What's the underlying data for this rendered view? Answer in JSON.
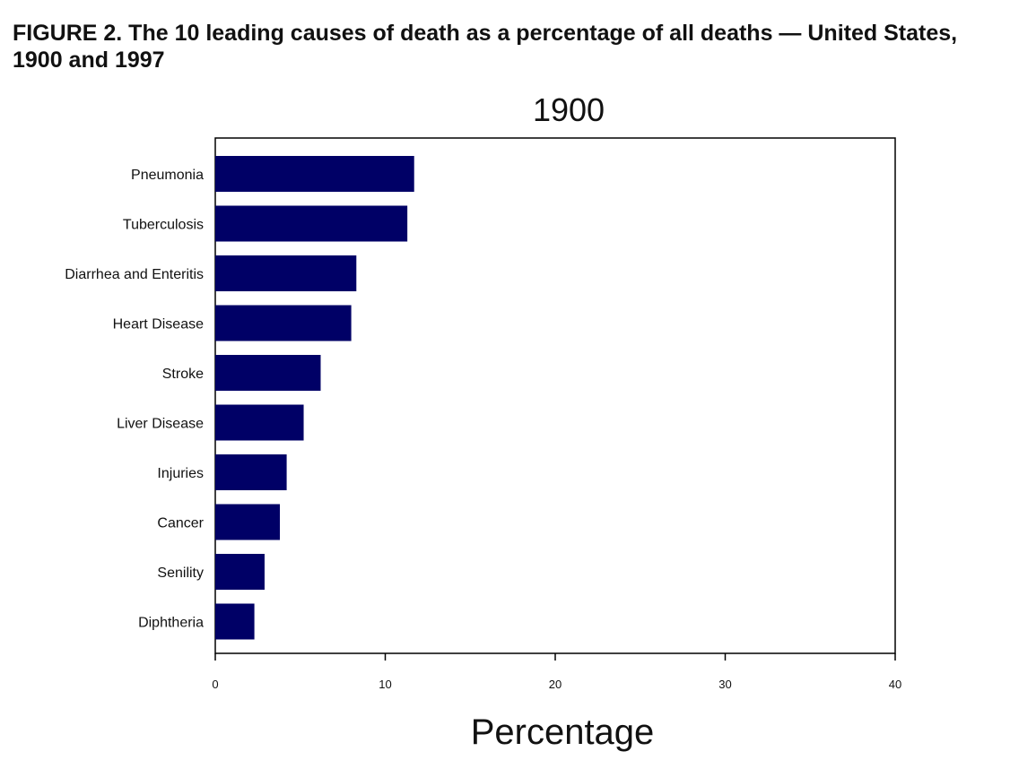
{
  "figure": {
    "title": "FIGURE 2. The 10 leading causes of death as a percentage of all deaths — United States, 1900 and 1997"
  },
  "chart_data": {
    "type": "bar",
    "orientation": "horizontal",
    "title": "1900",
    "xlabel": "Percentage",
    "ylabel": "",
    "categories": [
      "Pneumonia",
      "Tuberculosis",
      "Diarrhea and Enteritis",
      "Heart Disease",
      "Stroke",
      "Liver Disease",
      "Injuries",
      "Cancer",
      "Senility",
      "Diphtheria"
    ],
    "values": [
      11.7,
      11.3,
      8.3,
      8.0,
      6.2,
      5.2,
      4.2,
      3.8,
      2.9,
      2.3
    ],
    "xlim": [
      0,
      40
    ],
    "xticks": [
      0,
      10,
      20,
      30,
      40
    ],
    "bar_color": "#000066",
    "grid": false,
    "legend": "none"
  }
}
